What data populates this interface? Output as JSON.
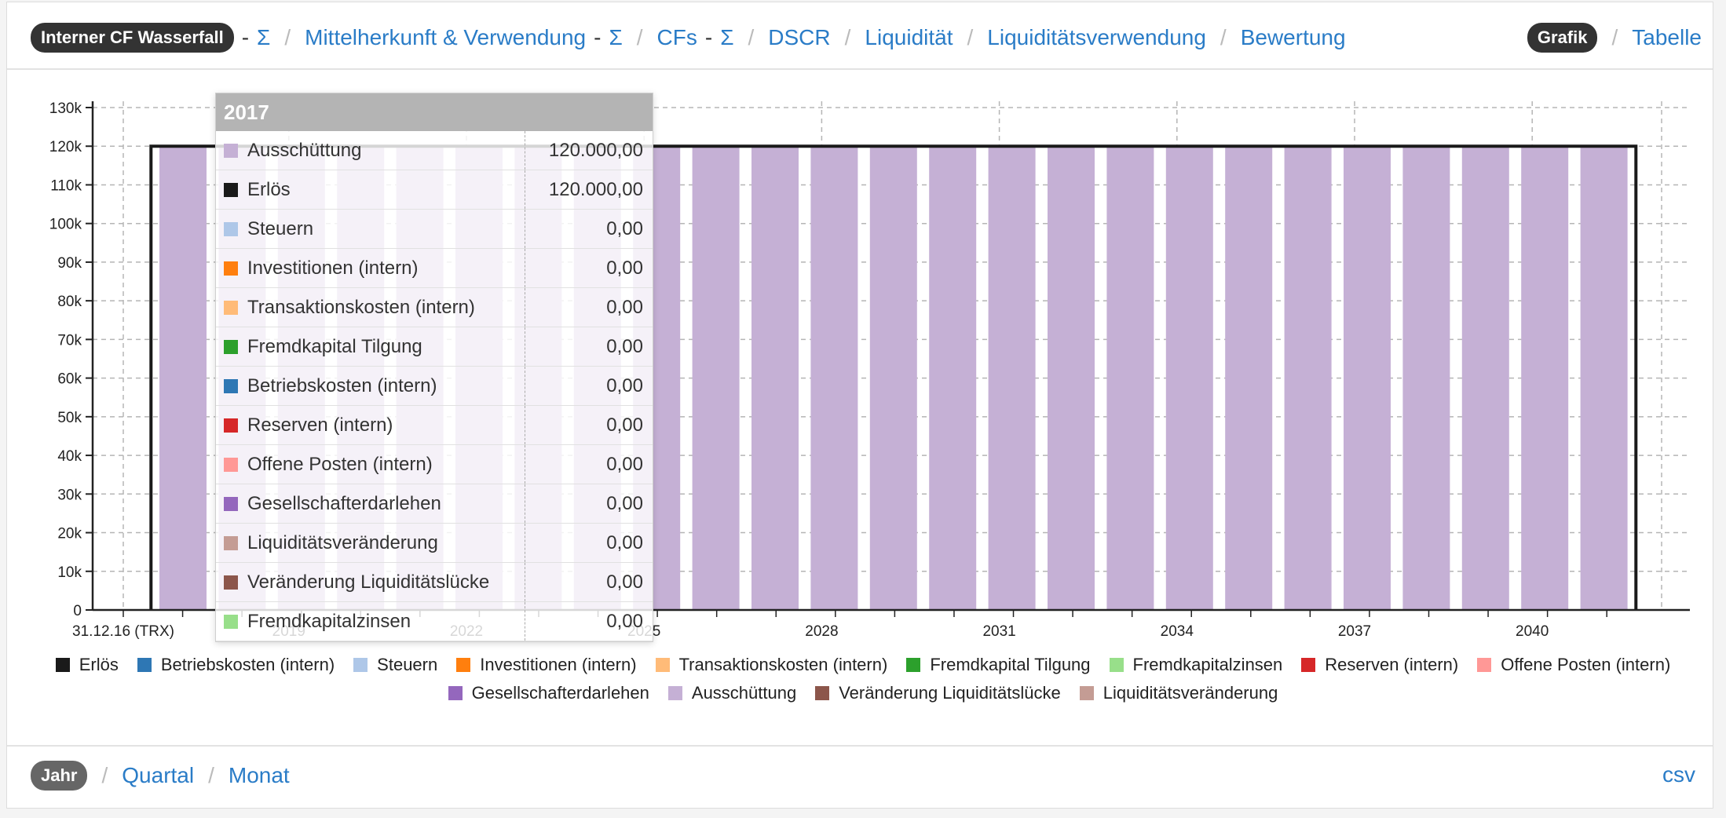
{
  "nav": {
    "items": [
      {
        "label": "Interner CF Wasserfall",
        "active": true,
        "suffix": "-",
        "sigma": "Σ"
      },
      {
        "label": "Mittelherkunft & Verwendung",
        "suffix": "-",
        "sigma": "Σ"
      },
      {
        "label": "CFs",
        "suffix": "-",
        "sigma": "Σ"
      },
      {
        "label": "DSCR"
      },
      {
        "label": "Liquidität"
      },
      {
        "label": "Liquiditätsverwendung"
      },
      {
        "label": "Bewertung"
      }
    ],
    "view_active": "Grafik",
    "view_other": "Tabelle"
  },
  "bottom_nav": {
    "active": "Jahr",
    "items": [
      "Quartal",
      "Monat"
    ],
    "export": "csv"
  },
  "colors": {
    "Erlös": "#1a1a1a",
    "Betriebskosten (intern)": "#2e77b4",
    "Steuern": "#aec7e8",
    "Investitionen (intern)": "#ff7f0e",
    "Transaktionskosten (intern)": "#ffbb78",
    "Fremdkapital Tilgung": "#2ca02c",
    "Fremdkapitalzinsen": "#98df8a",
    "Reserven (intern)": "#d62728",
    "Offene Posten (intern)": "#ff9896",
    "Gesellschafterdarlehen": "#9467bd",
    "Ausschüttung": "#c5b0d5",
    "Veränderung Liquiditätslücke": "#8c564b",
    "Liquiditätsveränderung": "#c49c94"
  },
  "chart_data": {
    "type": "bar",
    "x": [
      "2017",
      "2018",
      "2019",
      "2020",
      "2021",
      "2022",
      "2023",
      "2024",
      "2025",
      "2026",
      "2027",
      "2028",
      "2029",
      "2030",
      "2031",
      "2032",
      "2033",
      "2034",
      "2035",
      "2036",
      "2037",
      "2038",
      "2039",
      "2040",
      "2041"
    ],
    "x_ticks": [
      "31.12.16 (TRX)",
      "2019",
      "2022",
      "2025",
      "2028",
      "2031",
      "2034",
      "2037",
      "2040"
    ],
    "y_ticks": [
      "0",
      "10k",
      "20k",
      "30k",
      "40k",
      "50k",
      "60k",
      "70k",
      "80k",
      "90k",
      "100k",
      "110k",
      "120k",
      "130k"
    ],
    "ylim": [
      0,
      130000
    ],
    "series": [
      {
        "name": "Ausschüttung",
        "kind": "bar",
        "values": [
          120000,
          120000,
          120000,
          120000,
          120000,
          120000,
          120000,
          120000,
          120000,
          120000,
          120000,
          120000,
          120000,
          120000,
          120000,
          120000,
          120000,
          120000,
          120000,
          120000,
          120000,
          120000,
          120000,
          120000,
          120000
        ]
      },
      {
        "name": "Erlös",
        "kind": "step-line",
        "values": [
          120000,
          120000,
          120000,
          120000,
          120000,
          120000,
          120000,
          120000,
          120000,
          120000,
          120000,
          120000,
          120000,
          120000,
          120000,
          120000,
          120000,
          120000,
          120000,
          120000,
          120000,
          120000,
          120000,
          120000,
          120000
        ]
      }
    ],
    "legend": [
      "Erlös",
      "Betriebskosten (intern)",
      "Steuern",
      "Investitionen (intern)",
      "Transaktionskosten (intern)",
      "Fremdkapital Tilgung",
      "Fremdkapitalzinsen",
      "Reserven (intern)",
      "Offene Posten (intern)",
      "Gesellschafterdarlehen",
      "Ausschüttung",
      "Veränderung Liquiditätslücke",
      "Liquiditätsveränderung"
    ],
    "legend_position": "bottom",
    "grid": true
  },
  "tooltip": {
    "title": "2017",
    "rows": [
      {
        "name": "Ausschüttung",
        "value": "120.000,00"
      },
      {
        "name": "Erlös",
        "value": "120.000,00"
      },
      {
        "name": "Steuern",
        "value": "0,00"
      },
      {
        "name": "Investitionen (intern)",
        "value": "0,00"
      },
      {
        "name": "Transaktionskosten (intern)",
        "value": "0,00"
      },
      {
        "name": "Fremdkapital Tilgung",
        "value": "0,00"
      },
      {
        "name": "Betriebskosten (intern)",
        "value": "0,00"
      },
      {
        "name": "Reserven (intern)",
        "value": "0,00"
      },
      {
        "name": "Offene Posten (intern)",
        "value": "0,00"
      },
      {
        "name": "Gesellschafterdarlehen",
        "value": "0,00"
      },
      {
        "name": "Liquiditätsveränderung",
        "value": "0,00"
      },
      {
        "name": "Veränderung Liquiditätslücke",
        "value": "0,00"
      },
      {
        "name": "Fremdkapitalzinsen",
        "value": "0,00"
      }
    ]
  }
}
